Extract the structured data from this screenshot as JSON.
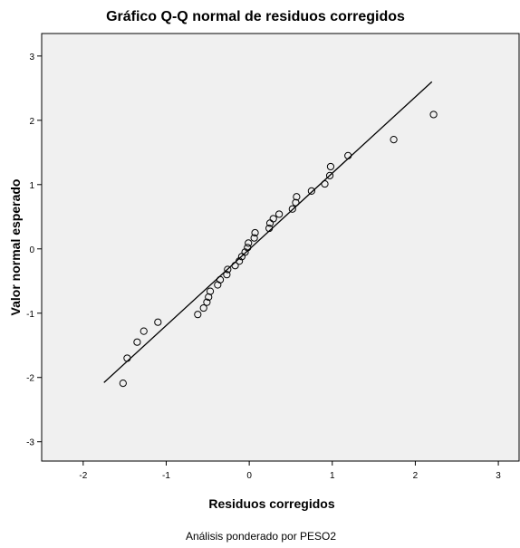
{
  "chart_data": {
    "type": "scatter",
    "title": "Gráfico Q-Q normal de residuos corregidos",
    "xlabel": "Residuos corregidos",
    "ylabel": "Valor normal esperado",
    "footnote": "Análisis ponderado por PESO2",
    "xlim": [
      -2.5,
      3.25
    ],
    "ylim": [
      -3.3,
      3.35
    ],
    "xticks": [
      -2,
      -1,
      0,
      1,
      2,
      3
    ],
    "yticks": [
      -3,
      -2,
      -1,
      0,
      1,
      2,
      3
    ],
    "grid": false,
    "plot_background": "#f0f0f0",
    "point_color": "#000000",
    "reference_line": {
      "x": [
        -1.75,
        2.2
      ],
      "y": [
        -2.08,
        2.6
      ]
    },
    "points": [
      {
        "x": -1.52,
        "y": -2.09
      },
      {
        "x": -1.47,
        "y": -1.7
      },
      {
        "x": -1.35,
        "y": -1.45
      },
      {
        "x": -1.27,
        "y": -1.28
      },
      {
        "x": -1.1,
        "y": -1.14
      },
      {
        "x": -0.62,
        "y": -1.02
      },
      {
        "x": -0.55,
        "y": -0.92
      },
      {
        "x": -0.51,
        "y": -0.83
      },
      {
        "x": -0.49,
        "y": -0.75
      },
      {
        "x": -0.47,
        "y": -0.66
      },
      {
        "x": -0.38,
        "y": -0.56
      },
      {
        "x": -0.35,
        "y": -0.48
      },
      {
        "x": -0.27,
        "y": -0.4
      },
      {
        "x": -0.26,
        "y": -0.32
      },
      {
        "x": -0.17,
        "y": -0.26
      },
      {
        "x": -0.12,
        "y": -0.19
      },
      {
        "x": -0.09,
        "y": -0.12
      },
      {
        "x": -0.05,
        "y": -0.05
      },
      {
        "x": -0.02,
        "y": 0.02
      },
      {
        "x": -0.01,
        "y": 0.09
      },
      {
        "x": 0.06,
        "y": 0.17
      },
      {
        "x": 0.07,
        "y": 0.25
      },
      {
        "x": 0.24,
        "y": 0.32
      },
      {
        "x": 0.25,
        "y": 0.4
      },
      {
        "x": 0.29,
        "y": 0.47
      },
      {
        "x": 0.36,
        "y": 0.54
      },
      {
        "x": 0.52,
        "y": 0.62
      },
      {
        "x": 0.56,
        "y": 0.72
      },
      {
        "x": 0.57,
        "y": 0.81
      },
      {
        "x": 0.75,
        "y": 0.9
      },
      {
        "x": 0.91,
        "y": 1.01
      },
      {
        "x": 0.97,
        "y": 1.14
      },
      {
        "x": 0.98,
        "y": 1.28
      },
      {
        "x": 1.19,
        "y": 1.45
      },
      {
        "x": 1.74,
        "y": 1.7
      },
      {
        "x": 2.22,
        "y": 2.09
      }
    ]
  }
}
